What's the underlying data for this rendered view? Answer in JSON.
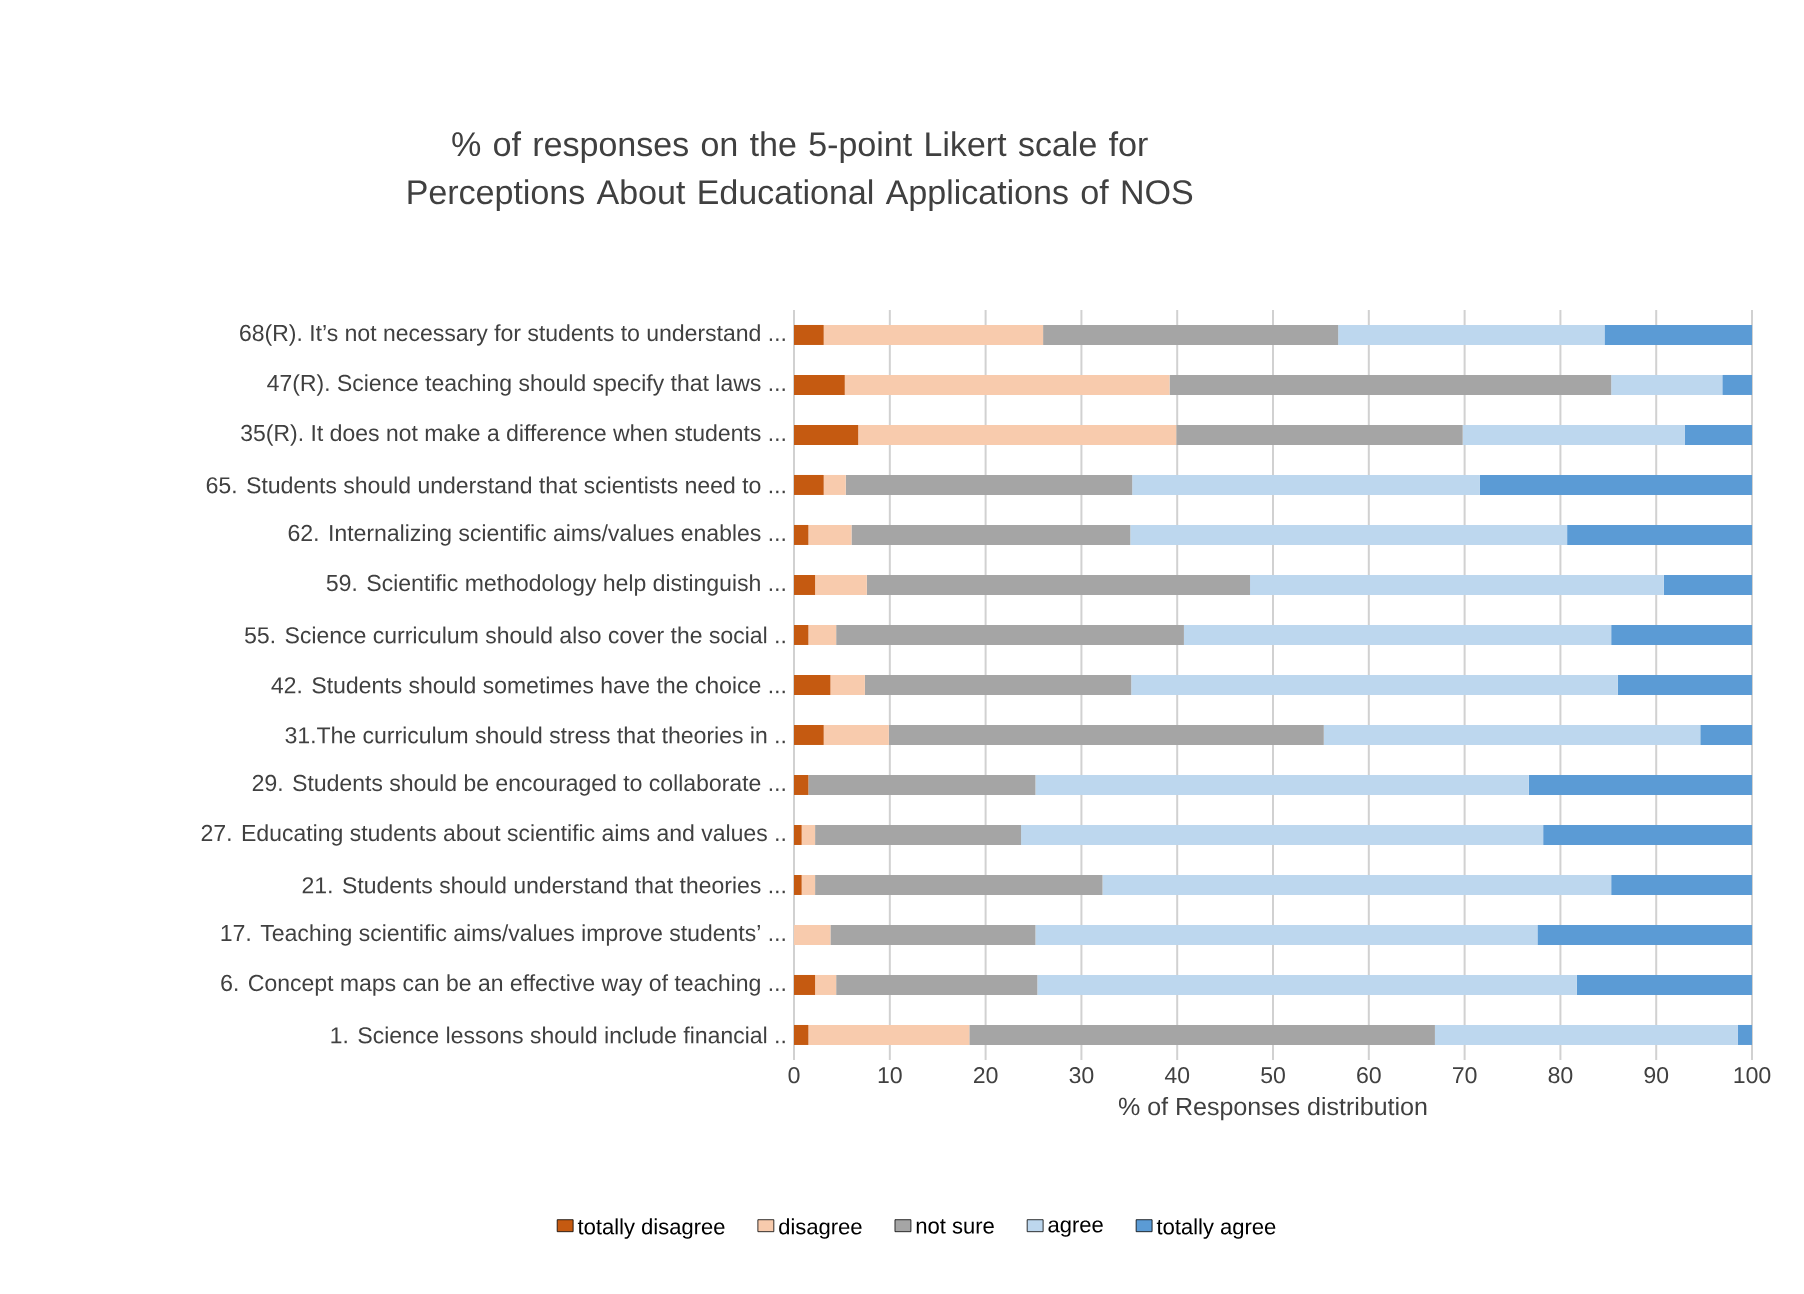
{
  "chart_data": {
    "type": "bar",
    "orientation": "horizontal",
    "stacked": true,
    "title": "% of responses on the 5-point Likert scale for Perceptions About Educational Applications of NOS",
    "xlabel": "% of Responses distribution",
    "categories": [
      "68(R).  It’s not necessary for students to understand ...",
      "47(R). Science teaching should specify that laws ...",
      "35(R). It does not make a difference when students ...",
      "65. Students should understand that scientists need to ...",
      "62. Internalizing scientific aims/values enables ...",
      "59. Scientific methodology help distinguish ...",
      "55. Science curriculum should also cover the social ..",
      "42. Students should sometimes have the choice ...",
      "31.The curriculum should stress that theories in ..",
      "29. Students should be encouraged to collaborate ...",
      "27. Educating students about scientific aims and values ..",
      "21. Students should understand that theories ...",
      "17. Teaching scientific aims/values improve students’ ...",
      "6. Concept maps can be an effective way of teaching ...",
      "1. Science lessons should include financial .."
    ],
    "series": [
      {
        "name": "totally disagree",
        "color": "#c55a11",
        "values": [
          3.1,
          5.3,
          6.7,
          3.1,
          1.5,
          2.2,
          1.5,
          3.8,
          3.1,
          1.5,
          0.8,
          0.8,
          0,
          2.2,
          1.5
        ]
      },
      {
        "name": "disagree",
        "color": "#f8cbad",
        "values": [
          22.9,
          33.9,
          33.2,
          2.3,
          4.5,
          5.4,
          2.9,
          3.6,
          6.8,
          0,
          1.4,
          1.4,
          3.8,
          2.2,
          16.8
        ]
      },
      {
        "name": "not sure",
        "color": "#a5a5a5",
        "values": [
          30.8,
          46.1,
          29.9,
          29.9,
          29.1,
          40.0,
          36.3,
          27.8,
          45.4,
          23.7,
          21.5,
          30.0,
          21.4,
          21.0,
          48.6
        ]
      },
      {
        "name": "agree",
        "color": "#bdd7ee",
        "values": [
          27.8,
          11.6,
          23.2,
          36.3,
          45.6,
          43.2,
          44.6,
          50.8,
          39.3,
          51.5,
          54.5,
          53.1,
          52.4,
          56.3,
          31.6
        ]
      },
      {
        "name": "totally agree",
        "color": "#5b9bd5",
        "values": [
          15.4,
          3.1,
          7.0,
          28.4,
          19.3,
          9.2,
          14.7,
          14.0,
          5.4,
          23.3,
          21.8,
          14.7,
          22.4,
          18.3,
          1.5
        ]
      }
    ],
    "xlim": [
      0,
      100
    ],
    "xticks": [
      0,
      10,
      20,
      30,
      40,
      50,
      60,
      70,
      80,
      90,
      100
    ],
    "grid": "x",
    "legend": "bottom"
  }
}
